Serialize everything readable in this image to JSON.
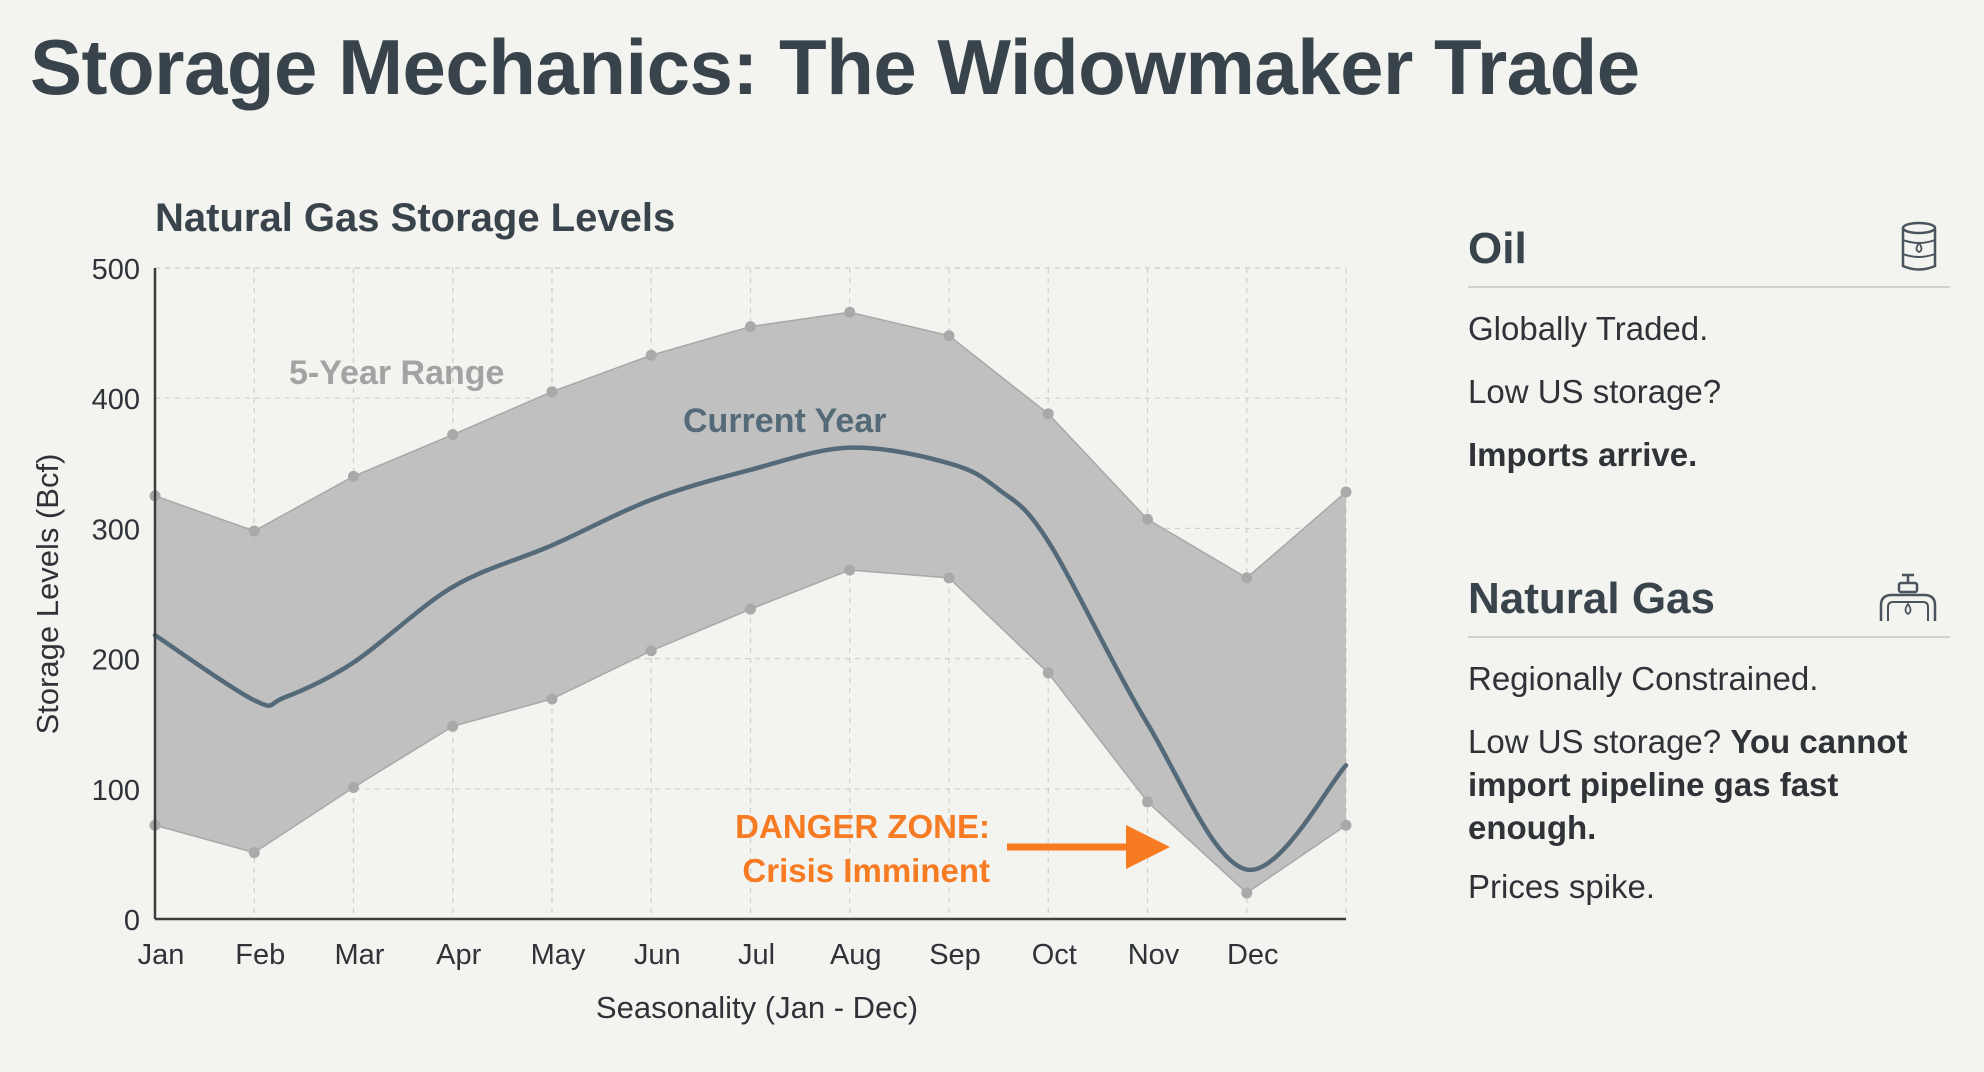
{
  "page_title": "Storage Mechanics: The Widowmaker Trade",
  "chart_data": {
    "type": "area",
    "title": "Natural Gas Storage Levels",
    "xlabel": "Seasonality (Jan - Dec)",
    "ylabel": "Storage Levels (Bcf)",
    "ylim": [
      0,
      500
    ],
    "y_ticks": [
      0,
      100,
      200,
      300,
      400,
      500
    ],
    "categories": [
      "Jan",
      "Feb",
      "Mar",
      "Apr",
      "May",
      "Jun",
      "Jul",
      "Aug",
      "Sep",
      "Oct",
      "Nov",
      "Dec"
    ],
    "band": {
      "name": "5-Year Range",
      "x": [
        0,
        1,
        2,
        3,
        4,
        5,
        6,
        7,
        8,
        9,
        10,
        11,
        12
      ],
      "upper": [
        325,
        298,
        340,
        372,
        405,
        433,
        455,
        466,
        448,
        388,
        307,
        262,
        328
      ],
      "lower": [
        72,
        51,
        101,
        148,
        169,
        206,
        238,
        268,
        262,
        189,
        90,
        20,
        72
      ]
    },
    "series": [
      {
        "name": "Current Year",
        "x": [
          0,
          1,
          1.3,
          2,
          3,
          4,
          5,
          6,
          7,
          8,
          8.5,
          9,
          10,
          11,
          12
        ],
        "values": [
          218,
          168,
          170,
          197,
          255,
          287,
          322,
          345,
          362,
          350,
          330,
          290,
          150,
          38,
          118
        ]
      }
    ],
    "grid": true,
    "annotations": [
      {
        "text": "5-Year Range"
      },
      {
        "text": "Current Year"
      },
      {
        "text": "DANGER ZONE:\nCrisis Imminent"
      }
    ],
    "colors": {
      "band": "#bdbdbd",
      "band_edge": "#a8a8a8",
      "line": "#546a78",
      "danger": "#f77b22",
      "range_label": "#a3a3a3",
      "axis": "#3d3d3d"
    }
  },
  "oil": {
    "title": "Oil",
    "icon": "oil-barrel-icon",
    "line1": "Globally Traded.",
    "line2": "Low US storage?",
    "line3": "Imports arrive."
  },
  "gas": {
    "title": "Natural Gas",
    "icon": "gas-valve-icon",
    "line1": "Regionally Constrained.",
    "line2_lead": "Low US storage?",
    "line2_bold": "You cannot import pipeline gas fast enough.",
    "line3": "Prices spike."
  }
}
